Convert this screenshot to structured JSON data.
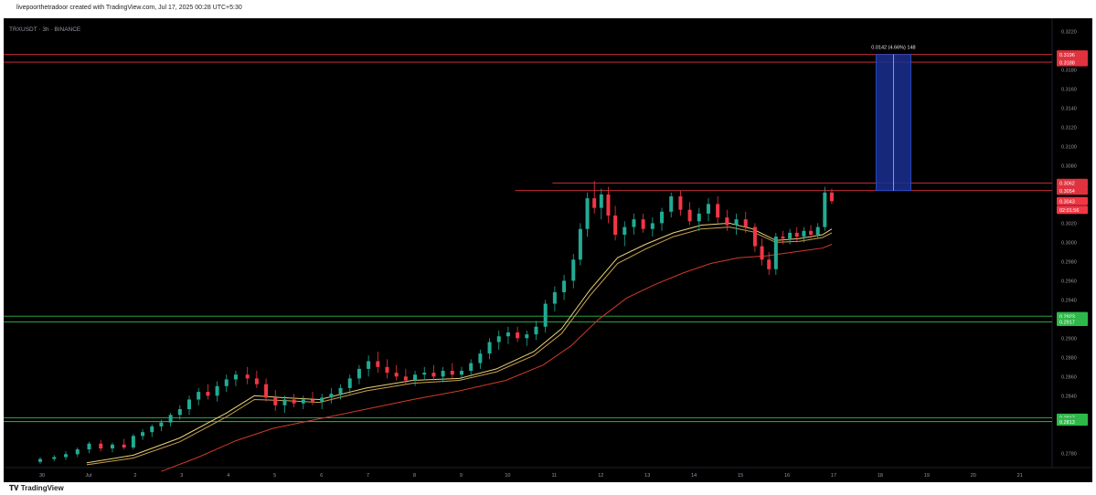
{
  "header": {
    "credit": "livepoorthetradoor created with TradingView.com, Jul 17, 2025 00:28 UTC+5:30",
    "symbol": "TRXUSDT · 3h · BINANCE"
  },
  "footer": {
    "logo": "TradingView"
  },
  "colors": {
    "background": "#000000",
    "up": "#22ab94",
    "down": "#f23645",
    "ema_fast": "#e8d27a",
    "ema_slow": "#d03a2a",
    "resistance": "#e0323f",
    "support": "#2fb84a",
    "measure_box": "#1a2f8f"
  },
  "chart_data": {
    "type": "candlestick",
    "symbol": "TRXUSDT",
    "interval": "3h",
    "exchange": "BINANCE",
    "x_ticks": [
      "30",
      "Jul",
      "2",
      "3",
      "4",
      "5",
      "6",
      "7",
      "8",
      "9",
      "10",
      "11",
      "12",
      "13",
      "14",
      "15",
      "16",
      "17",
      "18",
      "19",
      "20",
      "21"
    ],
    "y_ticks": [
      "0.3220",
      "0.3180",
      "0.3160",
      "0.3140",
      "0.3120",
      "0.3100",
      "0.3080",
      "0.3020",
      "0.3000",
      "0.2980",
      "0.2960",
      "0.2940",
      "0.2900",
      "0.2880",
      "0.2860",
      "0.2840",
      "0.2780"
    ],
    "ylim": [
      0.2765,
      0.323
    ],
    "xlim": [
      0,
      21.3
    ],
    "price_labels": [
      {
        "text": "0.3196",
        "value": 0.3196,
        "color": "#e0323f"
      },
      {
        "text": "0.3188",
        "value": 0.3188,
        "color": "#e0323f"
      },
      {
        "text": "0.3062",
        "value": 0.3062,
        "color": "#e0323f"
      },
      {
        "text": "0.3054",
        "value": 0.3054,
        "color": "#e0323f"
      },
      {
        "text": "0.3043",
        "value": 0.3043,
        "color": "#f23645"
      },
      {
        "text": "02:01:56",
        "value": 0.3034,
        "color": "#f23645"
      },
      {
        "text": "0.2923",
        "value": 0.2923,
        "color": "#2fb84a"
      },
      {
        "text": "0.2917",
        "value": 0.2917,
        "color": "#2fb84a"
      },
      {
        "text": "0.2817",
        "value": 0.2817,
        "color": "#2fb84a"
      },
      {
        "text": "0.2813",
        "value": 0.2813,
        "color": "#2fb84a"
      }
    ],
    "lines": [
      {
        "name": "resistance-upper-1",
        "value": 0.3196,
        "x_from": 0,
        "color": "#e0323f"
      },
      {
        "name": "resistance-upper-2",
        "value": 0.3188,
        "x_from": 0,
        "color": "#e0323f"
      },
      {
        "name": "resistance-1",
        "value": 0.3062,
        "x_from": 11.0,
        "color": "#e0323f"
      },
      {
        "name": "resistance-2",
        "value": 0.3054,
        "x_from": 10.2,
        "color": "#e0323f"
      },
      {
        "name": "support-1",
        "value": 0.2923,
        "x_from": 0,
        "color": "#2fb84a"
      },
      {
        "name": "support-2",
        "value": 0.2917,
        "x_from": 0,
        "color": "#2fb84a"
      },
      {
        "name": "support-3",
        "value": 0.2817,
        "x_from": 0,
        "color": "#2fb84a"
      },
      {
        "name": "support-4",
        "value": 0.2813,
        "x_from": 0,
        "color": "#2fb84a"
      }
    ],
    "measure": {
      "label": "0.0142 (4.66%) 148",
      "x0": 17.95,
      "x1": 18.7,
      "y0": 0.3054,
      "y1": 0.3196
    },
    "candles": [
      [
        0.0,
        0.2771,
        0.2776,
        0.2769,
        0.2774
      ],
      [
        0.3,
        0.2774,
        0.2778,
        0.2772,
        0.2776
      ],
      [
        0.55,
        0.2776,
        0.2782,
        0.2773,
        0.2779
      ],
      [
        0.8,
        0.2779,
        0.2786,
        0.2776,
        0.2784
      ],
      [
        1.05,
        0.2784,
        0.2792,
        0.278,
        0.279
      ],
      [
        1.3,
        0.279,
        0.2794,
        0.2782,
        0.2785
      ],
      [
        1.55,
        0.2785,
        0.2791,
        0.2781,
        0.2789
      ],
      [
        1.8,
        0.2789,
        0.2795,
        0.2784,
        0.2786
      ],
      [
        2.0,
        0.2786,
        0.28,
        0.2784,
        0.2798
      ],
      [
        2.2,
        0.2798,
        0.2805,
        0.2794,
        0.2802
      ],
      [
        2.4,
        0.2802,
        0.281,
        0.2797,
        0.2808
      ],
      [
        2.6,
        0.2808,
        0.2815,
        0.2803,
        0.2812
      ],
      [
        2.8,
        0.2812,
        0.2822,
        0.2808,
        0.282
      ],
      [
        3.0,
        0.282,
        0.283,
        0.2815,
        0.2826
      ],
      [
        3.2,
        0.2826,
        0.284,
        0.282,
        0.2836
      ],
      [
        3.4,
        0.2836,
        0.2848,
        0.283,
        0.2844
      ],
      [
        3.6,
        0.2844,
        0.2852,
        0.2836,
        0.284
      ],
      [
        3.8,
        0.284,
        0.2855,
        0.2834,
        0.285
      ],
      [
        4.0,
        0.285,
        0.2862,
        0.2844,
        0.2857
      ],
      [
        4.2,
        0.2857,
        0.2866,
        0.285,
        0.2862
      ],
      [
        4.45,
        0.2862,
        0.287,
        0.2852,
        0.2858
      ],
      [
        4.65,
        0.2858,
        0.2866,
        0.2848,
        0.2852
      ],
      [
        4.85,
        0.2852,
        0.2858,
        0.2834,
        0.2838
      ],
      [
        5.05,
        0.2838,
        0.2846,
        0.2824,
        0.283
      ],
      [
        5.25,
        0.283,
        0.284,
        0.2822,
        0.2836
      ],
      [
        5.45,
        0.2836,
        0.2842,
        0.2828,
        0.2832
      ],
      [
        5.65,
        0.2832,
        0.284,
        0.2826,
        0.2836
      ],
      [
        5.85,
        0.2836,
        0.2844,
        0.283,
        0.2834
      ],
      [
        6.05,
        0.2834,
        0.2842,
        0.2826,
        0.2838
      ],
      [
        6.25,
        0.2838,
        0.2848,
        0.2832,
        0.2842
      ],
      [
        6.45,
        0.2842,
        0.2852,
        0.2836,
        0.2848
      ],
      [
        6.65,
        0.2848,
        0.2862,
        0.2842,
        0.2858
      ],
      [
        6.85,
        0.2858,
        0.2872,
        0.2852,
        0.2868
      ],
      [
        7.05,
        0.2868,
        0.2882,
        0.286,
        0.2876
      ],
      [
        7.25,
        0.2876,
        0.2886,
        0.2864,
        0.287
      ],
      [
        7.45,
        0.287,
        0.2878,
        0.2858,
        0.2864
      ],
      [
        7.65,
        0.2864,
        0.2872,
        0.2856,
        0.286
      ],
      [
        7.85,
        0.286,
        0.2868,
        0.2852,
        0.2856
      ],
      [
        8.05,
        0.2856,
        0.2866,
        0.285,
        0.2862
      ],
      [
        8.25,
        0.2862,
        0.287,
        0.2856,
        0.2864
      ],
      [
        8.45,
        0.2864,
        0.2872,
        0.2856,
        0.286
      ],
      [
        8.65,
        0.286,
        0.287,
        0.2854,
        0.2866
      ],
      [
        8.85,
        0.2866,
        0.2874,
        0.2858,
        0.2862
      ],
      [
        9.05,
        0.2862,
        0.287,
        0.2856,
        0.2866
      ],
      [
        9.25,
        0.2866,
        0.2878,
        0.286,
        0.2874
      ],
      [
        9.45,
        0.2874,
        0.2888,
        0.2868,
        0.2884
      ],
      [
        9.65,
        0.2884,
        0.29,
        0.2878,
        0.2896
      ],
      [
        9.85,
        0.2896,
        0.2908,
        0.2888,
        0.2902
      ],
      [
        10.05,
        0.2902,
        0.2912,
        0.2894,
        0.2906
      ],
      [
        10.25,
        0.2906,
        0.2912,
        0.2896,
        0.29
      ],
      [
        10.45,
        0.29,
        0.2908,
        0.2892,
        0.2904
      ],
      [
        10.65,
        0.2904,
        0.2918,
        0.2898,
        0.2912
      ],
      [
        10.85,
        0.2912,
        0.294,
        0.2906,
        0.2936
      ],
      [
        11.05,
        0.2936,
        0.2954,
        0.2928,
        0.2948
      ],
      [
        11.25,
        0.2948,
        0.2966,
        0.294,
        0.296
      ],
      [
        11.45,
        0.296,
        0.2988,
        0.2952,
        0.2982
      ],
      [
        11.6,
        0.2982,
        0.302,
        0.2976,
        0.3014
      ],
      [
        11.75,
        0.3014,
        0.3052,
        0.3006,
        0.3046
      ],
      [
        11.9,
        0.3046,
        0.3064,
        0.303,
        0.3036
      ],
      [
        12.05,
        0.3036,
        0.3056,
        0.3024,
        0.305
      ],
      [
        12.2,
        0.305,
        0.3058,
        0.302,
        0.3028
      ],
      [
        12.35,
        0.3028,
        0.3038,
        0.3002,
        0.3008
      ],
      [
        12.55,
        0.3008,
        0.3022,
        0.2996,
        0.3016
      ],
      [
        12.75,
        0.3016,
        0.303,
        0.3008,
        0.3024
      ],
      [
        12.95,
        0.3024,
        0.303,
        0.301,
        0.3014
      ],
      [
        13.15,
        0.3014,
        0.3026,
        0.3006,
        0.302
      ],
      [
        13.35,
        0.302,
        0.3036,
        0.3012,
        0.3032
      ],
      [
        13.55,
        0.3032,
        0.3052,
        0.3026,
        0.3048
      ],
      [
        13.75,
        0.3048,
        0.3054,
        0.3028,
        0.3034
      ],
      [
        13.95,
        0.3034,
        0.3042,
        0.3018,
        0.3022
      ],
      [
        14.15,
        0.3022,
        0.3036,
        0.3012,
        0.303
      ],
      [
        14.35,
        0.303,
        0.3046,
        0.3022,
        0.304
      ],
      [
        14.55,
        0.304,
        0.3048,
        0.302,
        0.3026
      ],
      [
        14.75,
        0.3026,
        0.3034,
        0.3012,
        0.3018
      ],
      [
        14.95,
        0.3018,
        0.303,
        0.3008,
        0.3024
      ],
      [
        15.15,
        0.3024,
        0.3032,
        0.301,
        0.3016
      ],
      [
        15.35,
        0.3016,
        0.302,
        0.299,
        0.2996
      ],
      [
        15.5,
        0.2996,
        0.3004,
        0.2976,
        0.2982
      ],
      [
        15.65,
        0.2982,
        0.299,
        0.2966,
        0.2972
      ],
      [
        15.8,
        0.2972,
        0.301,
        0.2966,
        0.3006
      ],
      [
        15.95,
        0.3006,
        0.3012,
        0.2998,
        0.3004
      ],
      [
        16.1,
        0.3004,
        0.3014,
        0.2998,
        0.301
      ],
      [
        16.25,
        0.301,
        0.3016,
        0.3,
        0.3006
      ],
      [
        16.4,
        0.3006,
        0.3016,
        0.3,
        0.3012
      ],
      [
        16.55,
        0.3012,
        0.3018,
        0.3004,
        0.3008
      ],
      [
        16.7,
        0.3008,
        0.302,
        0.3004,
        0.3016
      ],
      [
        16.85,
        0.3016,
        0.3058,
        0.3012,
        0.3052
      ],
      [
        17.0,
        0.3052,
        0.3056,
        0.304,
        0.3043
      ]
    ],
    "ema_fast": [
      [
        1.0,
        0.277
      ],
      [
        2.0,
        0.2778
      ],
      [
        3.0,
        0.2796
      ],
      [
        4.0,
        0.2822
      ],
      [
        4.6,
        0.284
      ],
      [
        5.2,
        0.2838
      ],
      [
        6.0,
        0.2836
      ],
      [
        7.0,
        0.2848
      ],
      [
        8.0,
        0.2856
      ],
      [
        9.0,
        0.2858
      ],
      [
        9.8,
        0.2868
      ],
      [
        10.6,
        0.2886
      ],
      [
        11.2,
        0.291
      ],
      [
        11.8,
        0.295
      ],
      [
        12.4,
        0.2984
      ],
      [
        13.0,
        0.2998
      ],
      [
        13.6,
        0.301
      ],
      [
        14.2,
        0.3018
      ],
      [
        14.8,
        0.302
      ],
      [
        15.3,
        0.3014
      ],
      [
        15.8,
        0.3002
      ],
      [
        16.3,
        0.3004
      ],
      [
        16.8,
        0.3008
      ],
      [
        17.0,
        0.3014
      ]
    ],
    "ema_mid": [
      [
        1.0,
        0.2768
      ],
      [
        2.0,
        0.2775
      ],
      [
        3.0,
        0.2792
      ],
      [
        4.0,
        0.2818
      ],
      [
        4.6,
        0.2836
      ],
      [
        5.2,
        0.2835
      ],
      [
        6.0,
        0.2833
      ],
      [
        7.0,
        0.2845
      ],
      [
        8.0,
        0.2853
      ],
      [
        9.0,
        0.2856
      ],
      [
        9.8,
        0.2865
      ],
      [
        10.6,
        0.2882
      ],
      [
        11.2,
        0.2905
      ],
      [
        11.8,
        0.2944
      ],
      [
        12.4,
        0.2978
      ],
      [
        13.0,
        0.2993
      ],
      [
        13.6,
        0.3006
      ],
      [
        14.2,
        0.3014
      ],
      [
        14.8,
        0.3016
      ],
      [
        15.3,
        0.3011
      ],
      [
        15.8,
        0.3
      ],
      [
        16.3,
        0.3001
      ],
      [
        16.8,
        0.3005
      ],
      [
        17.0,
        0.301
      ]
    ],
    "ema_slow": [
      [
        2.6,
        0.2761
      ],
      [
        3.4,
        0.2776
      ],
      [
        4.2,
        0.2793
      ],
      [
        5.0,
        0.2806
      ],
      [
        6.0,
        0.2816
      ],
      [
        7.0,
        0.2826
      ],
      [
        8.0,
        0.2836
      ],
      [
        9.0,
        0.2845
      ],
      [
        10.0,
        0.2856
      ],
      [
        10.8,
        0.2872
      ],
      [
        11.4,
        0.2892
      ],
      [
        12.0,
        0.292
      ],
      [
        12.6,
        0.2942
      ],
      [
        13.2,
        0.2956
      ],
      [
        13.8,
        0.2968
      ],
      [
        14.4,
        0.2978
      ],
      [
        15.0,
        0.2984
      ],
      [
        15.6,
        0.2986
      ],
      [
        16.2,
        0.299
      ],
      [
        16.8,
        0.2994
      ],
      [
        17.0,
        0.2998
      ]
    ]
  }
}
